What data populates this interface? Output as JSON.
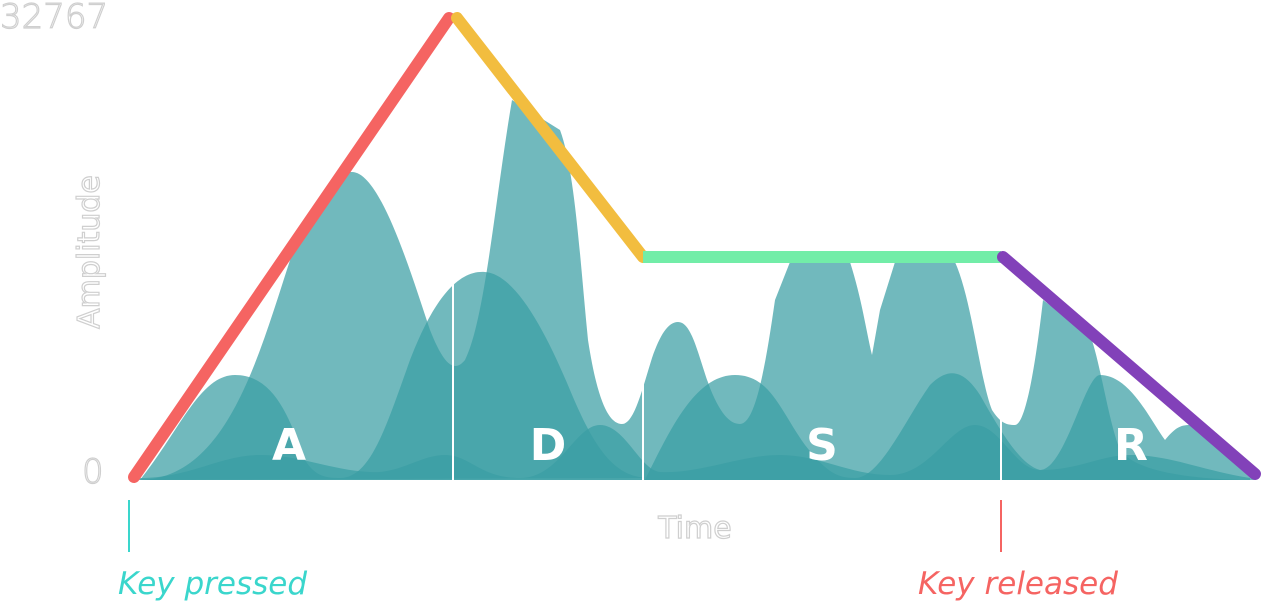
{
  "y_axis": {
    "max_label": "32767",
    "min_label": "0",
    "title": "Amplitude"
  },
  "x_axis": {
    "title": "Time"
  },
  "phases": [
    {
      "key": "attack",
      "letter": "A",
      "color": "#f56462"
    },
    {
      "key": "decay",
      "letter": "D",
      "color": "#f2bd3f"
    },
    {
      "key": "sustain",
      "letter": "S",
      "color": "#72eda8"
    },
    {
      "key": "release",
      "letter": "R",
      "color": "#8241b9"
    }
  ],
  "events": {
    "key_pressed": {
      "label": "Key pressed",
      "color": "#3ad6cc"
    },
    "key_released": {
      "label": "Key released",
      "color": "#f56462"
    }
  },
  "colors": {
    "waveform": "#3a9ea4"
  }
}
